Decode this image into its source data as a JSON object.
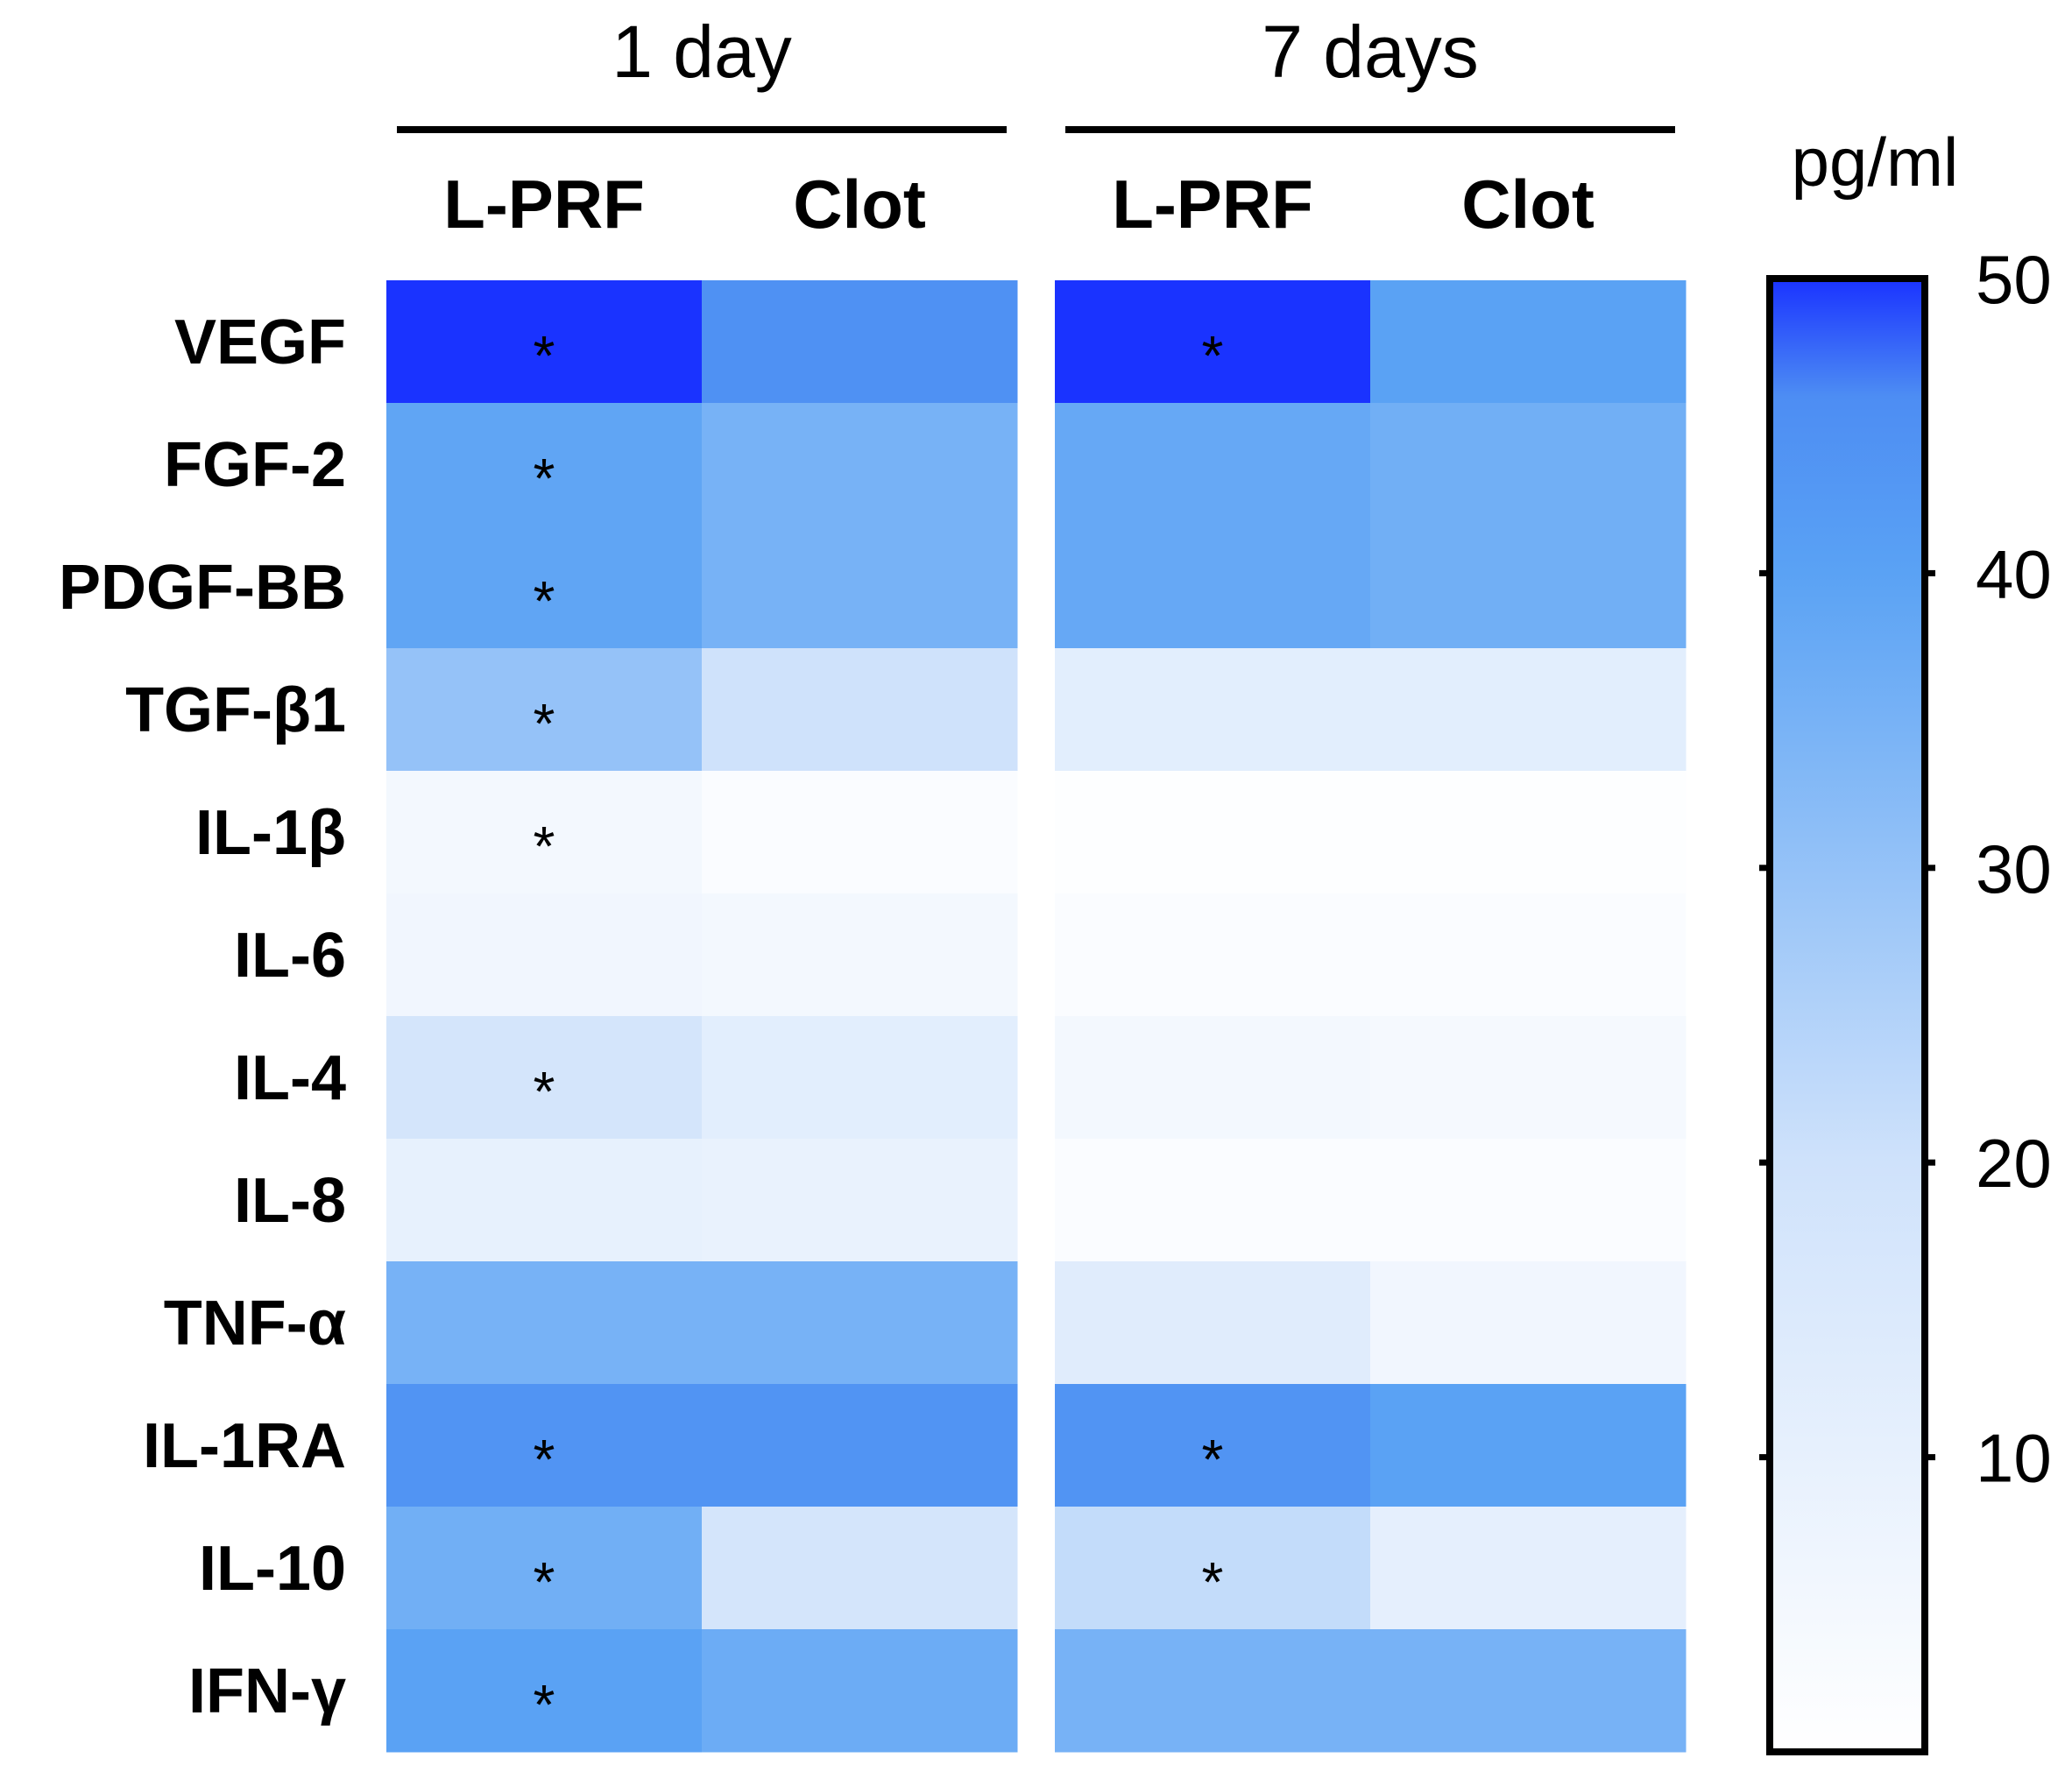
{
  "chart_data": {
    "type": "heatmap",
    "groups": [
      "1 day",
      "7 days"
    ],
    "columns": [
      "L-PRF",
      "Clot"
    ],
    "rows": [
      "VEGF",
      "FGF-2",
      "PDGF-BB",
      "TGF-β1",
      "IL-1β",
      "IL-6",
      "IL-4",
      "IL-8",
      "TNF-α",
      "IL-1RA",
      "IL-10",
      "IFN-γ"
    ],
    "values": [
      [
        50,
        45,
        50,
        40
      ],
      [
        39,
        35,
        38,
        36
      ],
      [
        39,
        35,
        38,
        36
      ],
      [
        30,
        20,
        12,
        12
      ],
      [
        5,
        2,
        1,
        1
      ],
      [
        6,
        5,
        2,
        2
      ],
      [
        18,
        12,
        5,
        4
      ],
      [
        10,
        9,
        2,
        2
      ],
      [
        35,
        35,
        13,
        6
      ],
      [
        44,
        44,
        44,
        40
      ],
      [
        36,
        18,
        22,
        11
      ],
      [
        40,
        37,
        35,
        35
      ]
    ],
    "significance": [
      [
        true,
        false,
        true,
        false
      ],
      [
        true,
        false,
        false,
        false
      ],
      [
        true,
        false,
        false,
        false
      ],
      [
        true,
        false,
        false,
        false
      ],
      [
        true,
        false,
        false,
        false
      ],
      [
        false,
        false,
        false,
        false
      ],
      [
        true,
        false,
        false,
        false
      ],
      [
        false,
        false,
        false,
        false
      ],
      [
        false,
        false,
        false,
        false
      ],
      [
        true,
        false,
        true,
        false
      ],
      [
        true,
        false,
        true,
        false
      ],
      [
        true,
        false,
        false,
        false
      ]
    ],
    "significance_marker": "*",
    "colorbar": {
      "label": "pg/ml",
      "min": 0,
      "max": 50,
      "ticks": [
        10,
        20,
        30,
        40,
        50
      ],
      "low_color": "#ffffff",
      "high_color": "#1a33ff"
    }
  }
}
